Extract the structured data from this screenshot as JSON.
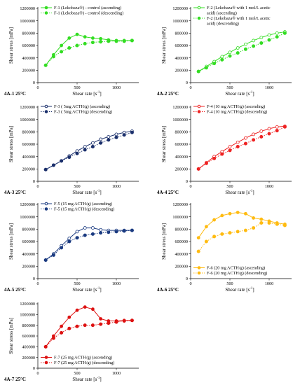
{
  "axis": {
    "ylabel": "Shear stress [mPa]",
    "xlabel_base": "Shear rate [s",
    "xlabel_exp": "-1",
    "xlabel_end": "]",
    "yticks": [
      0,
      200000,
      400000,
      600000,
      800000,
      1000000,
      1200000
    ],
    "xticks": [
      0,
      500,
      1000
    ],
    "xlim": [
      0,
      1250
    ],
    "ylim": [
      0,
      1200000
    ]
  },
  "chart_data": [
    {
      "type": "line",
      "panel_label": "4A-1 25°C",
      "color": "#33dd22",
      "legend_position": "top-left",
      "x": [
        100,
        200,
        300,
        400,
        500,
        600,
        700,
        800,
        900,
        1000,
        1100,
        1200
      ],
      "series": [
        {
          "name": "F-1 (Lekobaza®) - control (ascending)",
          "style": "solid",
          "values": [
            280000,
            450000,
            600000,
            720000,
            780000,
            740000,
            720000,
            710000,
            690000,
            680000,
            680000,
            680000
          ]
        },
        {
          "name": "F-1 (Lekobaza®) - control (descending)",
          "style": "dotted",
          "values": [
            280000,
            420000,
            500000,
            560000,
            600000,
            630000,
            650000,
            660000,
            670000,
            670000,
            670000,
            680000
          ]
        }
      ]
    },
    {
      "type": "line",
      "panel_label": "4A-2 25°C",
      "color": "#33dd22",
      "legend_position": "top-left",
      "x": [
        100,
        200,
        300,
        400,
        500,
        600,
        700,
        800,
        900,
        1000,
        1100,
        1200
      ],
      "series": [
        {
          "name": "F-2 (Lekobaza® with 1 mol/L acetic acid) (ascending)",
          "style": "solid",
          "legend_lines": [
            "F-2 (Lekobaza® with 1 mol/L acetic",
            "acid) (ascending)"
          ],
          "values": [
            180000,
            260000,
            340000,
            420000,
            490000,
            560000,
            620000,
            680000,
            730000,
            770000,
            800000,
            820000
          ]
        },
        {
          "name": "F-2 (Lekobaza® with 1 mol/L acetic acid) (descending)",
          "style": "dotted",
          "legend_lines": [
            "F-2 (Lekobaza® with 1 mol/L acetic",
            "acid) (descending)"
          ],
          "values": [
            180000,
            240000,
            310000,
            370000,
            430000,
            480000,
            540000,
            590000,
            640000,
            690000,
            740000,
            800000
          ]
        }
      ]
    },
    {
      "type": "line",
      "panel_label": "4A-3 25°C",
      "color": "#1a2f6b",
      "legend_position": "top-left",
      "x": [
        100,
        200,
        300,
        400,
        500,
        600,
        700,
        800,
        900,
        1000,
        1100,
        1200
      ],
      "series": [
        {
          "name": "F-3 ( 5mg ACTH/g) (ascending)",
          "style": "solid",
          "values": [
            190000,
            260000,
            330000,
            410000,
            490000,
            560000,
            620000,
            680000,
            720000,
            760000,
            790000,
            810000
          ]
        },
        {
          "name": "F-3 ( 5mg ACTH/g) (descending)",
          "style": "dotted",
          "values": [
            190000,
            260000,
            330000,
            390000,
            450000,
            510000,
            560000,
            620000,
            670000,
            710000,
            750000,
            790000
          ]
        }
      ]
    },
    {
      "type": "line",
      "panel_label": "4A-4 25°C",
      "color": "#ee2222",
      "legend_position": "top-left",
      "x": [
        100,
        200,
        300,
        400,
        500,
        600,
        700,
        800,
        900,
        1000,
        1100,
        1200
      ],
      "series": [
        {
          "name": "F-4 (10 mg ACTH/g) (ascending)",
          "style": "solid",
          "values": [
            200000,
            300000,
            400000,
            480000,
            560000,
            630000,
            700000,
            760000,
            810000,
            850000,
            880000,
            890000
          ]
        },
        {
          "name": "F-4 (10 mg ACTH/g) (descending)",
          "style": "dotted",
          "values": [
            200000,
            290000,
            370000,
            440000,
            500000,
            560000,
            610000,
            670000,
            720000,
            770000,
            820000,
            880000
          ]
        }
      ]
    },
    {
      "type": "line",
      "panel_label": "4A-5 25°C",
      "color": "#1a3a80",
      "legend_position": "top-left",
      "x": [
        100,
        200,
        300,
        400,
        500,
        600,
        700,
        800,
        900,
        1000,
        1100,
        1200
      ],
      "series": [
        {
          "name": "F-5 (15 mg ACTH/g) (ascending)",
          "style": "solid",
          "values": [
            300000,
            400000,
            530000,
            650000,
            760000,
            820000,
            820000,
            790000,
            780000,
            780000,
            780000,
            780000
          ]
        },
        {
          "name": "F-5 (15 mg ACTH/g) (descending)",
          "style": "dotted",
          "values": [
            300000,
            380000,
            500000,
            600000,
            660000,
            700000,
            720000,
            740000,
            750000,
            760000,
            770000,
            780000
          ]
        }
      ]
    },
    {
      "type": "line",
      "panel_label": "4A-6 25°C",
      "color": "#ffbb11",
      "legend_position": "bottom-left",
      "x": [
        100,
        200,
        300,
        400,
        500,
        600,
        700,
        800,
        900,
        1000,
        1100,
        1200
      ],
      "series": [
        {
          "name": "F-6 (20 mg ACTH/g) (ascending)",
          "style": "solid",
          "values": [
            660000,
            840000,
            950000,
            1020000,
            1050000,
            1070000,
            1050000,
            980000,
            960000,
            930000,
            900000,
            880000
          ]
        },
        {
          "name": "F-6 (20 mg ACTH/g) (descending)",
          "style": "dotted",
          "values": [
            440000,
            600000,
            680000,
            720000,
            740000,
            760000,
            780000,
            820000,
            900000,
            900000,
            880000,
            860000
          ]
        }
      ]
    },
    {
      "type": "line",
      "panel_label": "4A-7 25°C",
      "color": "#dd1111",
      "legend_position": "bottom-left",
      "x": [
        100,
        200,
        300,
        400,
        500,
        600,
        700,
        800,
        900,
        1000,
        1100,
        1200
      ],
      "series": [
        {
          "name": "F-7 (25 mg ACTH/g) (ascending)",
          "style": "solid",
          "values": [
            400000,
            600000,
            780000,
            950000,
            1080000,
            1140000,
            1100000,
            920000,
            880000,
            880000,
            890000,
            890000
          ]
        },
        {
          "name": "F-7 (25 mg ACTH/g) (descending)",
          "style": "dotted",
          "values": [
            400000,
            560000,
            660000,
            740000,
            780000,
            800000,
            800000,
            820000,
            840000,
            860000,
            880000,
            890000
          ]
        }
      ]
    }
  ]
}
